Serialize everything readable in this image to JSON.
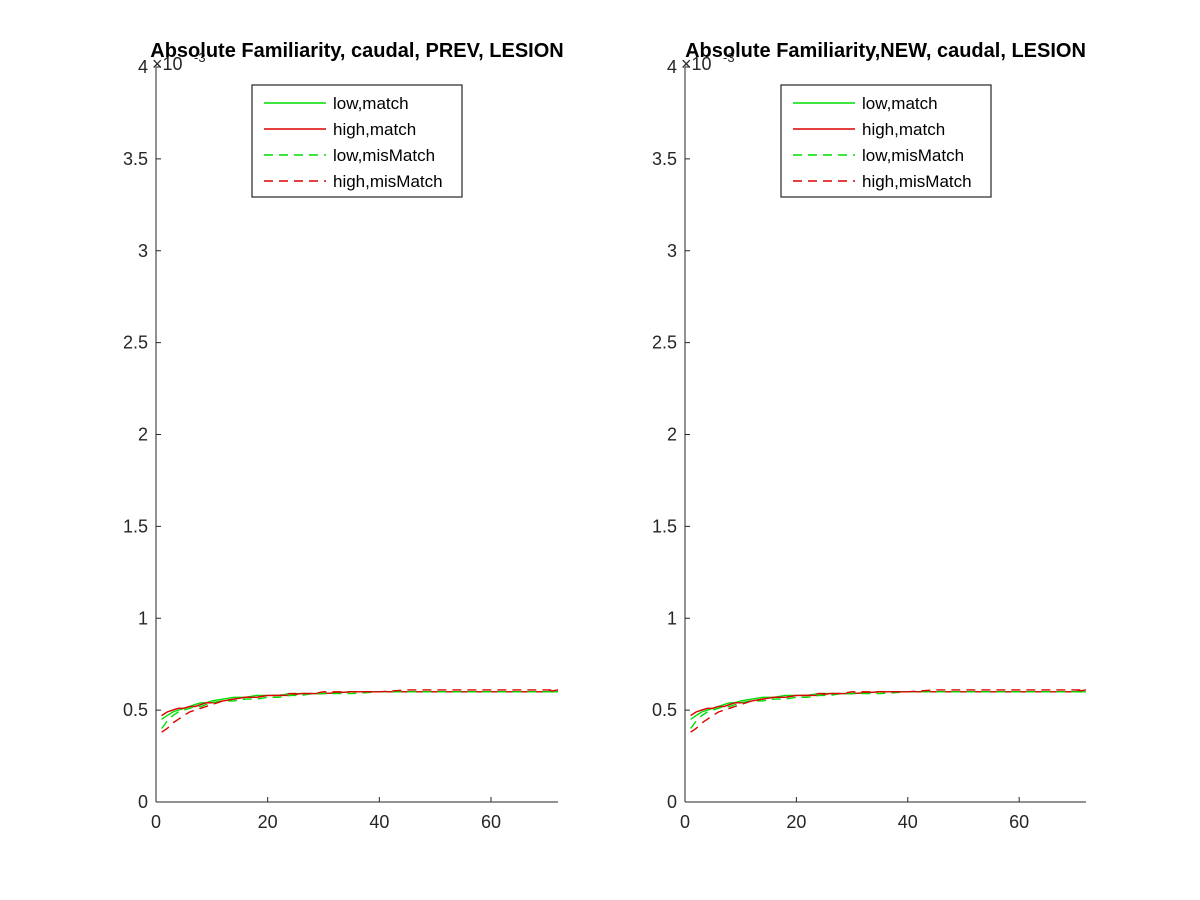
{
  "figure": {
    "background": "#ffffff"
  },
  "chart_data": [
    {
      "type": "line",
      "title": "Absolute Familiarity, caudal, PREV, LESION",
      "exponent_label": "×10",
      "exponent_power": "-3",
      "xlim": [
        0,
        72
      ],
      "ylim": [
        0,
        4
      ],
      "xticks": [
        0,
        20,
        40,
        60
      ],
      "xtick_labels": [
        "0",
        "20",
        "40",
        "60"
      ],
      "yticks": [
        0,
        0.5,
        1,
        1.5,
        2,
        2.5,
        3,
        3.5,
        4
      ],
      "ytick_labels": [
        "0",
        "0.5",
        "1",
        "1.5",
        "2",
        "2.5",
        "3",
        "3.5",
        "4"
      ],
      "xlabel": "",
      "ylabel": "",
      "grid": false,
      "legend_position": "top-center",
      "x": [
        1,
        2,
        3,
        4,
        5,
        6,
        7,
        8,
        9,
        10,
        12,
        14,
        16,
        18,
        20,
        22,
        24,
        26,
        28,
        30,
        35,
        40,
        45,
        50,
        55,
        60,
        65,
        70,
        72
      ],
      "series": [
        {
          "name": "low,match",
          "color": "#00dd00",
          "dash": "solid",
          "values": [
            0.45,
            0.47,
            0.49,
            0.5,
            0.51,
            0.52,
            0.53,
            0.54,
            0.54,
            0.55,
            0.56,
            0.57,
            0.57,
            0.58,
            0.58,
            0.58,
            0.59,
            0.59,
            0.59,
            0.59,
            0.6,
            0.6,
            0.6,
            0.6,
            0.6,
            0.6,
            0.6,
            0.6,
            0.6
          ]
        },
        {
          "name": "high,match",
          "color": "#dd0000",
          "dash": "solid",
          "values": [
            0.47,
            0.49,
            0.5,
            0.51,
            0.51,
            0.52,
            0.52,
            0.53,
            0.54,
            0.54,
            0.55,
            0.56,
            0.57,
            0.57,
            0.58,
            0.58,
            0.58,
            0.59,
            0.59,
            0.59,
            0.6,
            0.6,
            0.6,
            0.6,
            0.6,
            0.6,
            0.6,
            0.6,
            0.61
          ]
        },
        {
          "name": "low,misMatch",
          "color": "#00dd00",
          "dash": "dashed",
          "values": [
            0.4,
            0.44,
            0.47,
            0.49,
            0.5,
            0.51,
            0.52,
            0.52,
            0.53,
            0.54,
            0.55,
            0.55,
            0.56,
            0.56,
            0.57,
            0.57,
            0.58,
            0.58,
            0.59,
            0.59,
            0.59,
            0.6,
            0.6,
            0.6,
            0.6,
            0.6,
            0.6,
            0.6,
            0.6
          ]
        },
        {
          "name": "high,misMatch",
          "color": "#dd0000",
          "dash": "dashed",
          "values": [
            0.38,
            0.4,
            0.43,
            0.45,
            0.47,
            0.49,
            0.5,
            0.51,
            0.52,
            0.53,
            0.55,
            0.56,
            0.57,
            0.57,
            0.58,
            0.58,
            0.59,
            0.59,
            0.59,
            0.6,
            0.6,
            0.6,
            0.61,
            0.61,
            0.61,
            0.61,
            0.61,
            0.61,
            0.61
          ]
        }
      ]
    },
    {
      "type": "line",
      "title": "Absolute Familiarity,NEW, caudal, LESION",
      "exponent_label": "×10",
      "exponent_power": "-3",
      "xlim": [
        0,
        72
      ],
      "ylim": [
        0,
        4
      ],
      "xticks": [
        0,
        20,
        40,
        60
      ],
      "xtick_labels": [
        "0",
        "20",
        "40",
        "60"
      ],
      "yticks": [
        0,
        0.5,
        1,
        1.5,
        2,
        2.5,
        3,
        3.5,
        4
      ],
      "ytick_labels": [
        "0",
        "0.5",
        "1",
        "1.5",
        "2",
        "2.5",
        "3",
        "3.5",
        "4"
      ],
      "xlabel": "",
      "ylabel": "",
      "grid": false,
      "legend_position": "top-center",
      "x": [
        1,
        2,
        3,
        4,
        5,
        6,
        7,
        8,
        9,
        10,
        12,
        14,
        16,
        18,
        20,
        22,
        24,
        26,
        28,
        30,
        35,
        40,
        45,
        50,
        55,
        60,
        65,
        70,
        72
      ],
      "series": [
        {
          "name": "low,match",
          "color": "#00dd00",
          "dash": "solid",
          "values": [
            0.45,
            0.47,
            0.49,
            0.5,
            0.51,
            0.52,
            0.53,
            0.54,
            0.54,
            0.55,
            0.56,
            0.57,
            0.57,
            0.58,
            0.58,
            0.58,
            0.59,
            0.59,
            0.59,
            0.59,
            0.6,
            0.6,
            0.6,
            0.6,
            0.6,
            0.6,
            0.6,
            0.6,
            0.6
          ]
        },
        {
          "name": "high,match",
          "color": "#dd0000",
          "dash": "solid",
          "values": [
            0.47,
            0.49,
            0.5,
            0.51,
            0.51,
            0.52,
            0.52,
            0.53,
            0.54,
            0.54,
            0.55,
            0.56,
            0.57,
            0.57,
            0.58,
            0.58,
            0.58,
            0.59,
            0.59,
            0.59,
            0.6,
            0.6,
            0.6,
            0.6,
            0.6,
            0.6,
            0.6,
            0.6,
            0.61
          ]
        },
        {
          "name": "low,misMatch",
          "color": "#00dd00",
          "dash": "dashed",
          "values": [
            0.4,
            0.44,
            0.47,
            0.49,
            0.5,
            0.51,
            0.52,
            0.52,
            0.53,
            0.54,
            0.55,
            0.55,
            0.56,
            0.56,
            0.57,
            0.57,
            0.58,
            0.58,
            0.59,
            0.59,
            0.59,
            0.6,
            0.6,
            0.6,
            0.6,
            0.6,
            0.6,
            0.6,
            0.6
          ]
        },
        {
          "name": "high,misMatch",
          "color": "#dd0000",
          "dash": "dashed",
          "values": [
            0.38,
            0.4,
            0.43,
            0.45,
            0.47,
            0.49,
            0.5,
            0.51,
            0.52,
            0.53,
            0.55,
            0.56,
            0.57,
            0.57,
            0.58,
            0.58,
            0.59,
            0.59,
            0.59,
            0.6,
            0.6,
            0.6,
            0.61,
            0.61,
            0.61,
            0.61,
            0.61,
            0.61,
            0.61
          ]
        }
      ]
    }
  ]
}
